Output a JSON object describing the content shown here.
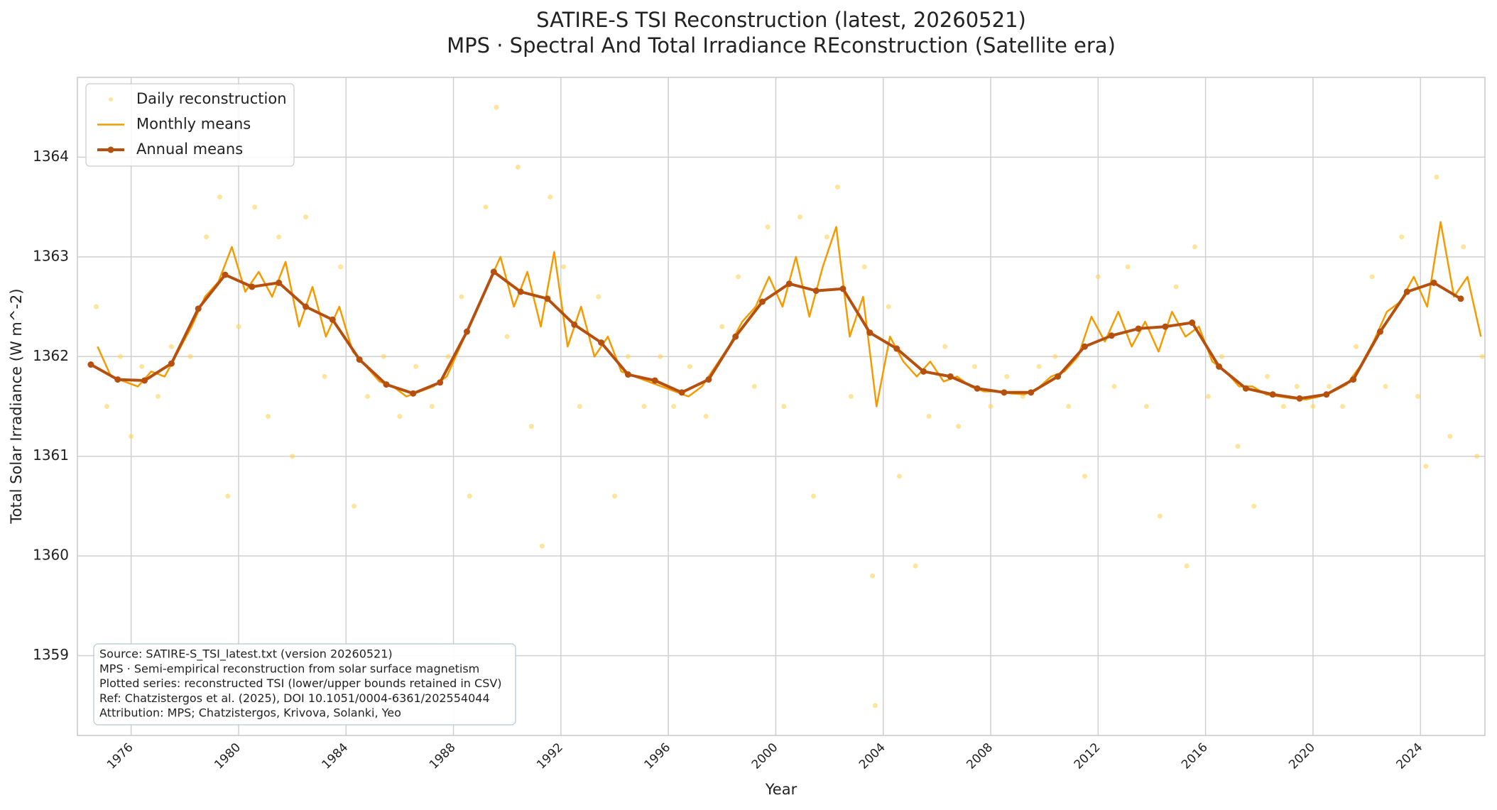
{
  "chart_data": {
    "type": "line",
    "title": "SATIRE-S TSI Reconstruction (latest, 20260521)",
    "subtitle": "MPS · Spectral And Total Irradiance REconstruction (Satellite era)",
    "x_label": "Year",
    "y_label": "Total Solar Irradiance (W m^-2)",
    "xlim": [
      1974.0,
      2026.4
    ],
    "ylim": [
      1358.2,
      1364.8
    ],
    "xticks": [
      1976,
      1980,
      1984,
      1988,
      1992,
      1996,
      2000,
      2004,
      2008,
      2012,
      2016,
      2020,
      2024
    ],
    "yticks": [
      1359,
      1360,
      1361,
      1362,
      1363,
      1364
    ],
    "grid": true,
    "legend": "upper left",
    "series": [
      {
        "name": "Daily reconstruction",
        "type": "scatter",
        "color": "#ffd25a",
        "x": [
          1974.7,
          1975.1,
          1975.6,
          1976.0,
          1976.4,
          1977.0,
          1977.5,
          1978.2,
          1978.8,
          1979.3,
          1979.6,
          1980.0,
          1980.6,
          1981.1,
          1981.5,
          1982.0,
          1982.5,
          1983.2,
          1983.8,
          1984.3,
          1984.8,
          1985.4,
          1986.0,
          1986.6,
          1987.2,
          1987.8,
          1988.3,
          1988.6,
          1989.2,
          1989.6,
          1990.0,
          1990.4,
          1990.9,
          1991.3,
          1991.6,
          1992.1,
          1992.7,
          1993.4,
          1994.0,
          1994.5,
          1995.1,
          1995.7,
          1996.2,
          1996.8,
          1997.4,
          1998.0,
          1998.6,
          1999.2,
          1999.7,
          2000.3,
          2000.9,
          2001.4,
          2001.9,
          2002.3,
          2002.8,
          2003.3,
          2003.6,
          2003.7,
          2004.2,
          2004.6,
          2005.2,
          2005.7,
          2006.3,
          2006.8,
          2007.4,
          2008.0,
          2008.6,
          2009.2,
          2009.8,
          2010.4,
          2010.9,
          2011.5,
          2012.0,
          2012.6,
          2013.1,
          2013.8,
          2014.3,
          2014.9,
          2015.3,
          2015.6,
          2016.1,
          2016.6,
          2017.2,
          2017.8,
          2018.3,
          2018.9,
          2019.4,
          2020.0,
          2020.6,
          2021.1,
          2021.6,
          2022.2,
          2022.7,
          2023.3,
          2023.9,
          2024.2,
          2024.6,
          2025.1,
          2025.6,
          2026.1,
          2026.3
        ],
        "values": [
          1362.5,
          1361.5,
          1362.0,
          1361.2,
          1361.9,
          1361.6,
          1362.1,
          1362.0,
          1363.2,
          1363.6,
          1360.6,
          1362.3,
          1363.5,
          1361.4,
          1363.2,
          1361.0,
          1363.4,
          1361.8,
          1362.9,
          1360.5,
          1361.6,
          1362.0,
          1361.4,
          1361.9,
          1361.5,
          1362.0,
          1362.6,
          1360.6,
          1363.5,
          1364.5,
          1362.2,
          1363.9,
          1361.3,
          1360.1,
          1363.6,
          1362.9,
          1361.5,
          1362.6,
          1360.6,
          1362.0,
          1361.5,
          1362.0,
          1361.5,
          1361.9,
          1361.4,
          1362.3,
          1362.8,
          1361.7,
          1363.3,
          1361.5,
          1363.4,
          1360.6,
          1363.2,
          1363.7,
          1361.6,
          1362.9,
          1359.8,
          1358.5,
          1362.5,
          1360.8,
          1359.9,
          1361.4,
          1362.1,
          1361.3,
          1361.9,
          1361.5,
          1361.8,
          1361.6,
          1361.9,
          1362.0,
          1361.5,
          1360.8,
          1362.8,
          1361.7,
          1362.9,
          1361.5,
          1360.4,
          1362.7,
          1359.9,
          1363.1,
          1361.6,
          1362.0,
          1361.1,
          1360.5,
          1361.8,
          1361.5,
          1361.7,
          1361.5,
          1361.7,
          1361.5,
          1362.1,
          1362.8,
          1361.7,
          1363.2,
          1361.6,
          1360.9,
          1363.8,
          1361.2,
          1363.1,
          1361.0,
          1362.0
        ]
      },
      {
        "name": "Monthly means",
        "type": "line",
        "color": "#f59b00",
        "x": [
          1974.75,
          1975.25,
          1975.75,
          1976.25,
          1976.75,
          1977.25,
          1977.75,
          1978.25,
          1978.75,
          1979.25,
          1979.75,
          1980.25,
          1980.75,
          1981.25,
          1981.75,
          1982.25,
          1982.75,
          1983.25,
          1983.75,
          1984.25,
          1984.75,
          1985.25,
          1985.75,
          1986.25,
          1986.75,
          1987.25,
          1987.75,
          1988.25,
          1988.75,
          1989.25,
          1989.75,
          1990.25,
          1990.75,
          1991.25,
          1991.75,
          1992.25,
          1992.75,
          1993.25,
          1993.75,
          1994.25,
          1994.75,
          1995.25,
          1995.75,
          1996.25,
          1996.75,
          1997.25,
          1997.75,
          1998.25,
          1998.75,
          1999.25,
          1999.75,
          2000.25,
          2000.75,
          2001.25,
          2001.75,
          2002.25,
          2002.75,
          2003.25,
          2003.75,
          2004.25,
          2004.75,
          2005.25,
          2005.75,
          2006.25,
          2006.75,
          2007.25,
          2007.75,
          2008.25,
          2008.75,
          2009.25,
          2009.75,
          2010.25,
          2010.75,
          2011.25,
          2011.75,
          2012.25,
          2012.75,
          2013.25,
          2013.75,
          2014.25,
          2014.75,
          2015.25,
          2015.75,
          2016.25,
          2016.75,
          2017.25,
          2017.75,
          2018.25,
          2018.75,
          2019.25,
          2019.75,
          2020.25,
          2020.75,
          2021.25,
          2021.75,
          2022.25,
          2022.75,
          2023.25,
          2023.75,
          2024.25,
          2024.75,
          2025.25,
          2025.75,
          2026.25
        ],
        "values": [
          1362.1,
          1361.8,
          1361.75,
          1361.7,
          1361.85,
          1361.8,
          1362.05,
          1362.3,
          1362.6,
          1362.75,
          1363.1,
          1362.65,
          1362.85,
          1362.6,
          1362.95,
          1362.3,
          1362.7,
          1362.2,
          1362.5,
          1362.05,
          1361.9,
          1361.75,
          1361.7,
          1361.6,
          1361.65,
          1361.7,
          1361.8,
          1362.1,
          1362.4,
          1362.7,
          1363.0,
          1362.5,
          1362.85,
          1362.3,
          1363.05,
          1362.1,
          1362.5,
          1362.0,
          1362.2,
          1361.85,
          1361.8,
          1361.75,
          1361.7,
          1361.65,
          1361.6,
          1361.7,
          1361.9,
          1362.1,
          1362.35,
          1362.5,
          1362.8,
          1362.5,
          1363.0,
          1362.4,
          1362.9,
          1363.3,
          1362.2,
          1362.6,
          1361.5,
          1362.2,
          1361.95,
          1361.8,
          1361.95,
          1361.75,
          1361.8,
          1361.7,
          1361.65,
          1361.65,
          1361.63,
          1361.62,
          1361.68,
          1361.8,
          1361.85,
          1362.0,
          1362.4,
          1362.15,
          1362.45,
          1362.1,
          1362.35,
          1362.05,
          1362.45,
          1362.2,
          1362.3,
          1361.95,
          1361.85,
          1361.7,
          1361.7,
          1361.62,
          1361.6,
          1361.58,
          1361.57,
          1361.6,
          1361.65,
          1361.72,
          1361.9,
          1362.15,
          1362.45,
          1362.55,
          1362.8,
          1362.5,
          1363.35,
          1362.6,
          1362.8,
          1362.2
        ]
      },
      {
        "name": "Annual means",
        "type": "line-markers",
        "color": "#b5500e",
        "x": [
          1974.5,
          1975.5,
          1976.5,
          1977.5,
          1978.5,
          1979.5,
          1980.5,
          1981.5,
          1982.5,
          1983.5,
          1984.5,
          1985.5,
          1986.5,
          1987.5,
          1988.5,
          1989.5,
          1990.5,
          1991.5,
          1992.5,
          1993.5,
          1994.5,
          1995.5,
          1996.5,
          1997.5,
          1998.5,
          1999.5,
          2000.5,
          2001.5,
          2002.5,
          2003.5,
          2004.5,
          2005.5,
          2006.5,
          2007.5,
          2008.5,
          2009.5,
          2010.5,
          2011.5,
          2012.5,
          2013.5,
          2014.5,
          2015.5,
          2016.5,
          2017.5,
          2018.5,
          2019.5,
          2020.5,
          2021.5,
          2022.5,
          2023.5,
          2024.5,
          2025.5
        ],
        "values": [
          1361.92,
          1361.77,
          1361.76,
          1361.93,
          1362.48,
          1362.82,
          1362.7,
          1362.74,
          1362.5,
          1362.37,
          1361.97,
          1361.72,
          1361.63,
          1361.74,
          1362.25,
          1362.85,
          1362.65,
          1362.58,
          1362.32,
          1362.14,
          1361.82,
          1361.76,
          1361.64,
          1361.77,
          1362.2,
          1362.55,
          1362.73,
          1362.66,
          1362.68,
          1362.24,
          1362.08,
          1361.85,
          1361.8,
          1361.68,
          1361.64,
          1361.64,
          1361.8,
          1362.1,
          1362.21,
          1362.28,
          1362.3,
          1362.34,
          1361.9,
          1361.68,
          1361.62,
          1361.58,
          1361.62,
          1361.77,
          1362.25,
          1362.65,
          1362.74,
          1362.58
        ]
      }
    ],
    "annotation": [
      "Source: SATIRE-S_TSI_latest.txt (version 20260521)",
      "MPS · Semi-empirical reconstruction from solar surface magnetism",
      "Plotted series: reconstructed TSI (lower/upper bounds retained in CSV)",
      "Ref: Chatzistergos et al. (2025), DOI 10.1051/0004-6361/202554044",
      "Attribution: MPS; Chatzistergos, Krivova, Solanki, Yeo"
    ]
  }
}
